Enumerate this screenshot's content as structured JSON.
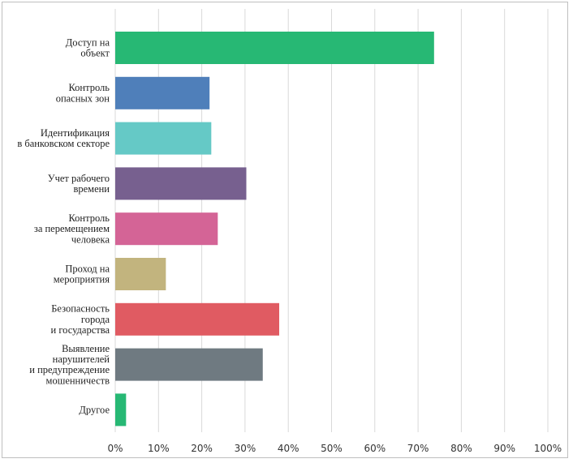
{
  "chart_data": {
    "type": "bar",
    "orientation": "horizontal",
    "categories": [
      [
        "Доступ на",
        "объект"
      ],
      [
        "Контроль",
        "опасных зон"
      ],
      [
        "Идентификация",
        "в банковском секторе"
      ],
      [
        "Учет рабочего",
        "времени"
      ],
      [
        "Контроль",
        "за перемещением",
        "человека"
      ],
      [
        "Проход на",
        "мероприятия"
      ],
      [
        "Безопасность",
        "города",
        "и государства"
      ],
      [
        "Выявление",
        "нарушителей",
        "и предупреждение",
        "мошенничеств"
      ],
      [
        "Другое"
      ]
    ],
    "values": [
      73.7,
      21.8,
      22.2,
      30.3,
      23.7,
      11.7,
      37.9,
      34.1,
      2.5
    ],
    "colors": [
      "#27b874",
      "#4f7fba",
      "#65c9c6",
      "#77608f",
      "#d46496",
      "#c2b47e",
      "#e05b62",
      "#6f7a81",
      "#27b874"
    ],
    "xlim": [
      0,
      100
    ],
    "xticks": [
      "0%",
      "10%",
      "20%",
      "30%",
      "40%",
      "50%",
      "60%",
      "70%",
      "80%",
      "90%",
      "100%"
    ],
    "grid": true,
    "title": "",
    "xlabel": "",
    "ylabel": ""
  }
}
